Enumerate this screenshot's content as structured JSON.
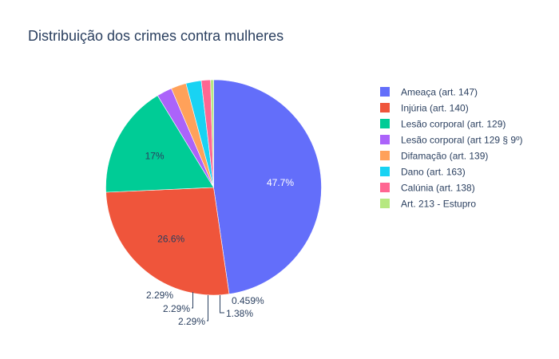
{
  "chart_data": {
    "type": "pie",
    "title": "Distribuição dos crimes contra mulheres",
    "series": [
      {
        "labels": [
          "Ameaça (art. 147)",
          "Injúria (art. 140)",
          "Lesão corporal (art. 129)",
          "Lesão corporal (art 129 § 9º)",
          "Difamação (art. 139)",
          "Dano (art. 163)",
          "Calúnia (art. 138)",
          "Art. 213 - Estupro"
        ],
        "values": [
          47.7,
          26.6,
          17,
          2.29,
          2.29,
          2.29,
          1.38,
          0.459
        ],
        "text_labels": [
          "47.7%",
          "26.6%",
          "17%",
          "2.29%",
          "2.29%",
          "2.29%",
          "1.38%",
          "0.459%"
        ],
        "colors": [
          "#636efa",
          "#EF553B",
          "#00cc96",
          "#ab63fa",
          "#FFA15A",
          "#19d3f3",
          "#FF6692",
          "#B6E880"
        ]
      }
    ],
    "legend_position": "right",
    "direction": "clockwise",
    "start": "top"
  }
}
